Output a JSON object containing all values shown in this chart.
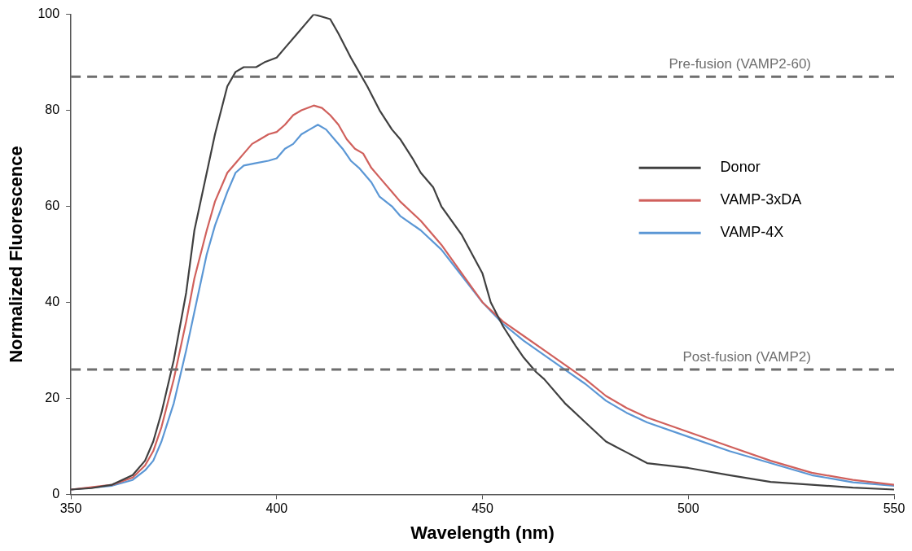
{
  "chart_data": {
    "type": "line",
    "xlabel": "Wavelength (nm)",
    "ylabel": "Normalized Fluorescence",
    "xlim": [
      350,
      550
    ],
    "xticks": [
      350,
      400,
      450,
      500,
      550
    ],
    "ylim": [
      0,
      100
    ],
    "yticks": [
      0,
      20,
      40,
      60,
      80,
      100
    ],
    "grid": false,
    "legend": "right",
    "marker": "none",
    "line_style": "solid",
    "ref_lines": [
      {
        "axis": "y",
        "value": 87,
        "label": "Pre-fusion (VAMP2-60)",
        "color": "#6e6e6e",
        "line_style": "dashed"
      },
      {
        "axis": "y",
        "value": 26,
        "label": "Post-fusion (VAMP2)",
        "color": "#6e6e6e",
        "line_style": "dashed"
      }
    ],
    "series": [
      {
        "name": "Donor",
        "color": "#404040",
        "x": [
          350,
          355,
          360,
          365,
          368,
          370,
          372,
          375,
          378,
          380,
          383,
          385,
          388,
          390,
          392,
          395,
          397,
          400,
          402,
          405,
          407,
          409,
          411,
          413,
          415,
          418,
          420,
          422,
          425,
          428,
          430,
          433,
          435,
          438,
          440,
          445,
          450,
          452,
          455,
          458,
          460,
          463,
          465,
          470,
          475,
          480,
          490,
          500,
          510,
          520,
          530,
          540,
          550
        ],
        "values": [
          1,
          1.3,
          2,
          4,
          7,
          11,
          17,
          28,
          42,
          55,
          67,
          75,
          85,
          88,
          89,
          89,
          90,
          91,
          93,
          96,
          98,
          100,
          99.5,
          99,
          96,
          91,
          88,
          85,
          80,
          76,
          74,
          70,
          67,
          64,
          60,
          54,
          46,
          40,
          35,
          31,
          28.5,
          25.5,
          24,
          19,
          15,
          11,
          6.5,
          5.5,
          4,
          2.6,
          2,
          1.4,
          1
        ]
      },
      {
        "name": "VAMP-3xDA",
        "color": "#d0605c",
        "x": [
          350,
          360,
          365,
          368,
          370,
          372,
          375,
          378,
          380,
          383,
          385,
          388,
          390,
          392,
          394,
          396,
          398,
          400,
          402,
          404,
          406,
          409,
          411,
          413,
          415,
          417,
          419,
          421,
          423,
          425,
          428,
          430,
          435,
          440,
          445,
          450,
          455,
          460,
          465,
          470,
          475,
          480,
          485,
          490,
          500,
          510,
          520,
          530,
          540,
          550
        ],
        "values": [
          1,
          2,
          3.5,
          6,
          9,
          14,
          24,
          36,
          45,
          55,
          61,
          67,
          69,
          71,
          73,
          74,
          75,
          75.5,
          77,
          79,
          80,
          81,
          80.5,
          79,
          77,
          74,
          72,
          71,
          68,
          66,
          63,
          61,
          57,
          52,
          46,
          40,
          36,
          33,
          30,
          27,
          24,
          20.5,
          18,
          16,
          13,
          10,
          7,
          4.5,
          3,
          2
        ]
      },
      {
        "name": "VAMP-4X",
        "color": "#5b97d5",
        "x": [
          350,
          360,
          365,
          368,
          370,
          372,
          375,
          378,
          380,
          383,
          385,
          388,
          390,
          392,
          395,
          398,
          400,
          402,
          404,
          406,
          408,
          410,
          412,
          414,
          416,
          418,
          420,
          423,
          425,
          428,
          430,
          435,
          440,
          445,
          450,
          455,
          460,
          465,
          470,
          475,
          480,
          485,
          490,
          500,
          510,
          520,
          530,
          540,
          550
        ],
        "values": [
          1,
          1.8,
          3,
          5,
          7,
          11,
          19,
          30,
          38,
          50,
          56,
          63,
          67,
          68.5,
          69,
          69.5,
          70,
          72,
          73,
          75,
          76,
          77,
          76,
          74,
          72,
          69.5,
          68,
          65,
          62,
          60,
          58,
          55,
          51,
          45.5,
          40,
          35.5,
          32,
          29,
          26,
          23,
          19.5,
          17,
          15,
          12,
          9,
          6.5,
          4,
          2.5,
          1.8
        ]
      }
    ]
  }
}
